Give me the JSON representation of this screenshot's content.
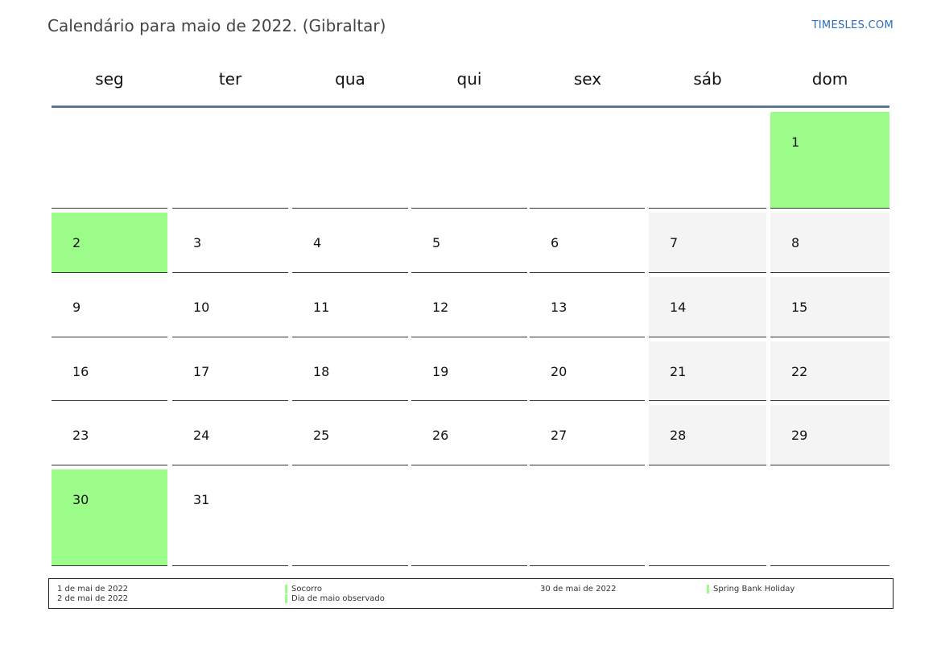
{
  "header": {
    "title": "Calendário para maio de 2022. (Gibraltar)",
    "site": "TIMESLES.COM"
  },
  "weekdays": [
    "seg",
    "ter",
    "qua",
    "qui",
    "sex",
    "sáb",
    "dom"
  ],
  "colors": {
    "holiday": "#9cfc8a",
    "weekend": "#f4f4f4",
    "header_rule": "#5e7694",
    "link": "#2a6ebb"
  },
  "calendar": {
    "weeks": [
      [
        "",
        "",
        "",
        "",
        "",
        "",
        "1"
      ],
      [
        "2",
        "3",
        "4",
        "5",
        "6",
        "7",
        "8"
      ],
      [
        "9",
        "10",
        "11",
        "12",
        "13",
        "14",
        "15"
      ],
      [
        "16",
        "17",
        "18",
        "19",
        "20",
        "21",
        "22"
      ],
      [
        "23",
        "24",
        "25",
        "26",
        "27",
        "28",
        "29"
      ],
      [
        "30",
        "31",
        "",
        "",
        "",
        "",
        ""
      ]
    ],
    "holidays": [
      "1",
      "2",
      "30"
    ]
  },
  "legend": {
    "col1": [
      "1 de mai de 2022",
      "2 de mai de 2022"
    ],
    "col2": [
      "Socorro",
      "Dia de maio observado"
    ],
    "col3": [
      "30 de mai de 2022"
    ],
    "col4": [
      "Spring Bank Holiday"
    ]
  }
}
